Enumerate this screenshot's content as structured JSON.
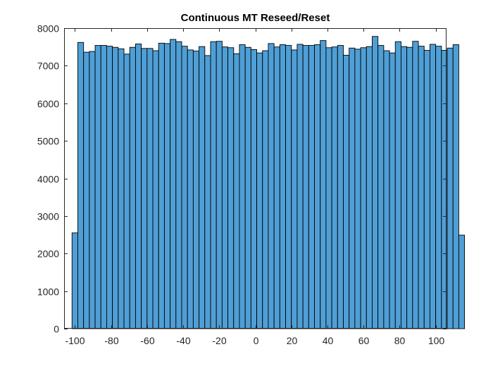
{
  "chart_data": {
    "type": "bar",
    "title": "Continuous MT Reseed/Reset",
    "xlabel": "",
    "ylabel": "",
    "xlim": [
      -106,
      106
    ],
    "ylim": [
      0,
      8000
    ],
    "xticks": [
      -100,
      -80,
      -60,
      -40,
      -20,
      0,
      20,
      40,
      60,
      80,
      100
    ],
    "xtick_labels": [
      "-100",
      "-80",
      "-60",
      "-40",
      "-20",
      "0",
      "20",
      "40",
      "60",
      "80",
      "100"
    ],
    "yticks": [
      0,
      1000,
      2000,
      3000,
      4000,
      5000,
      6000,
      7000,
      8000
    ],
    "ytick_labels": [
      "0",
      "1000",
      "2000",
      "3000",
      "4000",
      "5000",
      "6000",
      "7000",
      "8000"
    ],
    "grid": false,
    "bin_width": 3.2,
    "bin_start": -101.6,
    "values": [
      2550,
      7620,
      7360,
      7380,
      7540,
      7540,
      7520,
      7490,
      7450,
      7310,
      7490,
      7580,
      7460,
      7460,
      7400,
      7600,
      7590,
      7700,
      7640,
      7520,
      7420,
      7390,
      7510,
      7270,
      7640,
      7650,
      7500,
      7480,
      7320,
      7560,
      7490,
      7430,
      7340,
      7400,
      7590,
      7500,
      7560,
      7540,
      7420,
      7570,
      7540,
      7540,
      7560,
      7670,
      7480,
      7500,
      7540,
      7280,
      7470,
      7440,
      7480,
      7510,
      7780,
      7540,
      7400,
      7340,
      7640,
      7510,
      7490,
      7650,
      7520,
      7410,
      7570,
      7520,
      7410,
      7470,
      7560,
      2490
    ],
    "bar_color": "#4f9fd6",
    "edge_color": "#000000"
  }
}
